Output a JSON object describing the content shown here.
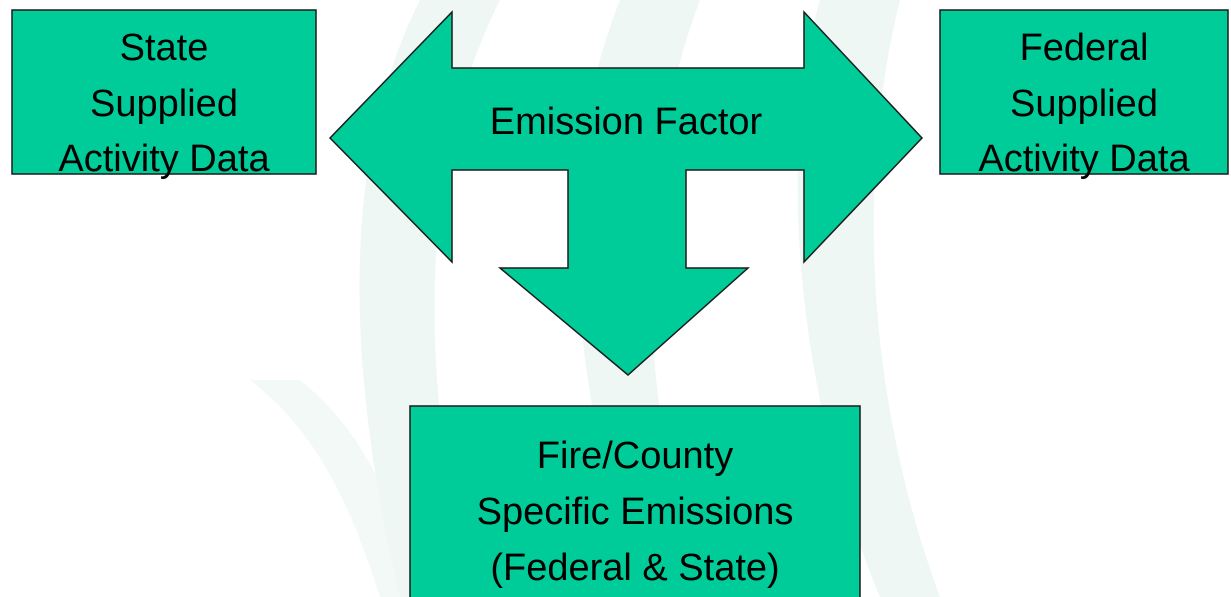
{
  "nodes": [
    {
      "label": [
        "State",
        "Supplied",
        "Activity Data"
      ]
    },
    {
      "label": [
        "Emission Factor"
      ]
    },
    {
      "label": [
        "Federal",
        "Supplied",
        "Activity Data"
      ]
    },
    {
      "label": [
        "Fire/County",
        "Specific Emissions",
        "(Federal & State)"
      ]
    }
  ]
}
